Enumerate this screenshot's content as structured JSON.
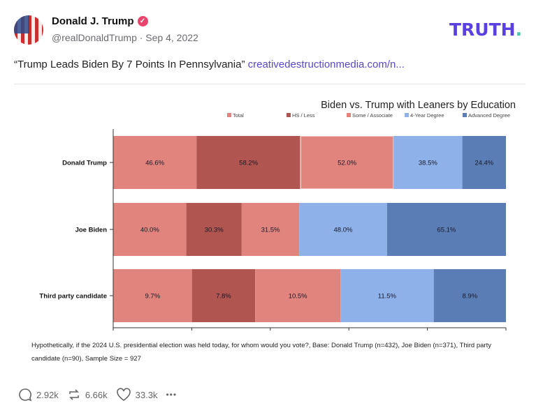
{
  "post": {
    "author_name": "Donald J. Trump",
    "verified": true,
    "handle_date": "@realDonaldTrump · Sep 4, 2022",
    "brand_logo": "TRUTH",
    "brand_dot": ".",
    "text": "“Trump Leads Biden By 7 Points In Pennsylvania”",
    "link": "creativedestructionmedia.com/n...",
    "stats": {
      "replies": "2.92k",
      "retruths": "6.66k",
      "likes": "33.3k"
    },
    "more_label": "•••"
  },
  "chart_data": {
    "type": "bar",
    "orientation": "horizontal",
    "stacked": "100%",
    "title": "Biden vs. Trump with Leaners by Education",
    "legend_position": "top",
    "categories": [
      "Donald Trump",
      "Joe Biden",
      "Third party candidate"
    ],
    "series": [
      {
        "name": "Total",
        "color": "#e0847d",
        "values": [
          46.6,
          40.0,
          9.7
        ],
        "labels": [
          "46.6%",
          "40.0%",
          "9.7%"
        ]
      },
      {
        "name": "HS / Less",
        "color": "#b0554f",
        "values": [
          58.2,
          30.3,
          7.8
        ],
        "labels": [
          "58.2%",
          "30.3%",
          "7.8%"
        ]
      },
      {
        "name": "Some / Associate",
        "color": "#e0847d",
        "values": [
          52.0,
          31.5,
          10.5
        ],
        "labels": [
          "52.0%",
          "31.5%",
          "10.5%"
        ]
      },
      {
        "name": "4-Year Degree",
        "color": "#8db1e8",
        "values": [
          38.5,
          48.0,
          11.5
        ],
        "labels": [
          "38.5%",
          "48.0%",
          "11.5%"
        ]
      },
      {
        "name": "Advanced Degree",
        "color": "#5a7db5",
        "values": [
          24.4,
          65.1,
          8.9
        ],
        "labels": [
          "24.4%",
          "65.1%",
          "8.9%"
        ]
      }
    ],
    "grid": false,
    "footnote": "Hypothetically, if the 2024 U.S. presidential election was held today, for whom would you vote?, Base: Donald Trump (n=432), Joe Biden (n=371), Third party candidate (n=90), Sample Size = 927"
  }
}
